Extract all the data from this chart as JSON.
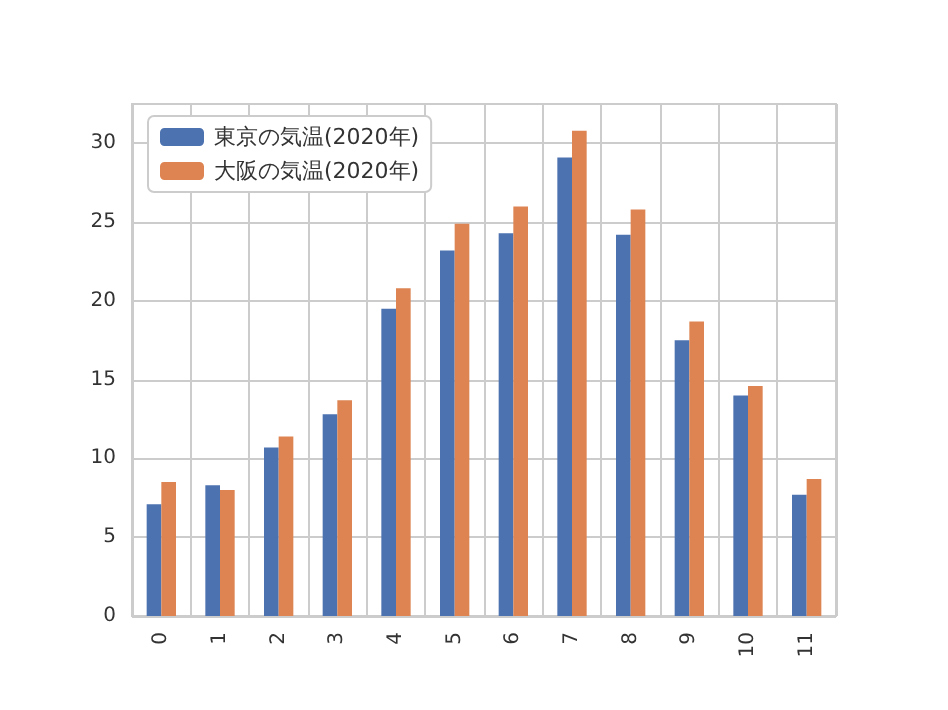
{
  "chart_data": {
    "type": "bar",
    "categories": [
      "0",
      "1",
      "2",
      "3",
      "4",
      "5",
      "6",
      "7",
      "8",
      "9",
      "10",
      "11"
    ],
    "series": [
      {
        "name": "東京の気温(2020年)",
        "color": "#4c72b0",
        "values": [
          7.1,
          8.3,
          10.7,
          12.8,
          19.5,
          23.2,
          24.3,
          29.1,
          24.2,
          17.5,
          14.0,
          7.7
        ]
      },
      {
        "name": "大阪の気温(2020年)",
        "color": "#dd8452",
        "values": [
          8.5,
          8.0,
          11.4,
          13.7,
          20.8,
          24.9,
          26.0,
          30.8,
          25.8,
          18.7,
          14.6,
          8.7
        ]
      }
    ],
    "ylim": [
      0,
      32.5
    ],
    "yticks": [
      0,
      5,
      10,
      15,
      20,
      25,
      30
    ],
    "grid": true,
    "legend": "top left"
  }
}
